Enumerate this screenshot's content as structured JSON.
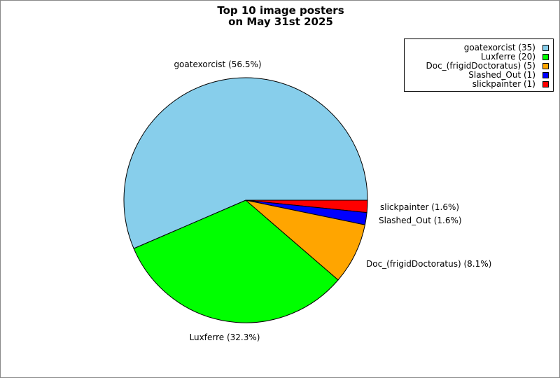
{
  "chart_data": {
    "type": "pie",
    "title_lines": [
      "Top 10 image posters",
      "on May 31st 2025"
    ],
    "legend_position": "top-right",
    "slices": [
      {
        "name": "goatexorcist",
        "value": 35,
        "percent_label": "goatexorcist (56.5%)",
        "legend_label": "goatexorcist (35)",
        "color": "#87CEEB"
      },
      {
        "name": "Luxferre",
        "value": 20,
        "percent_label": "Luxferre (32.3%)",
        "legend_label": "Luxferre (20)",
        "color": "#00FF00"
      },
      {
        "name": "Doc_(frigidDoctoratus)",
        "value": 5,
        "percent_label": "Doc_(frigidDoctoratus) (8.1%)",
        "legend_label": "Doc_(frigidDoctoratus) (5)",
        "color": "#FFA500"
      },
      {
        "name": "Slashed_Out",
        "value": 1,
        "percent_label": "Slashed_Out (1.6%)",
        "legend_label": "Slashed_Out (1)",
        "color": "#0000FF"
      },
      {
        "name": "slickpainter",
        "value": 1,
        "percent_label": "slickpainter (1.6%)",
        "legend_label": "slickpainter (1)",
        "color": "#FF0000"
      }
    ]
  }
}
